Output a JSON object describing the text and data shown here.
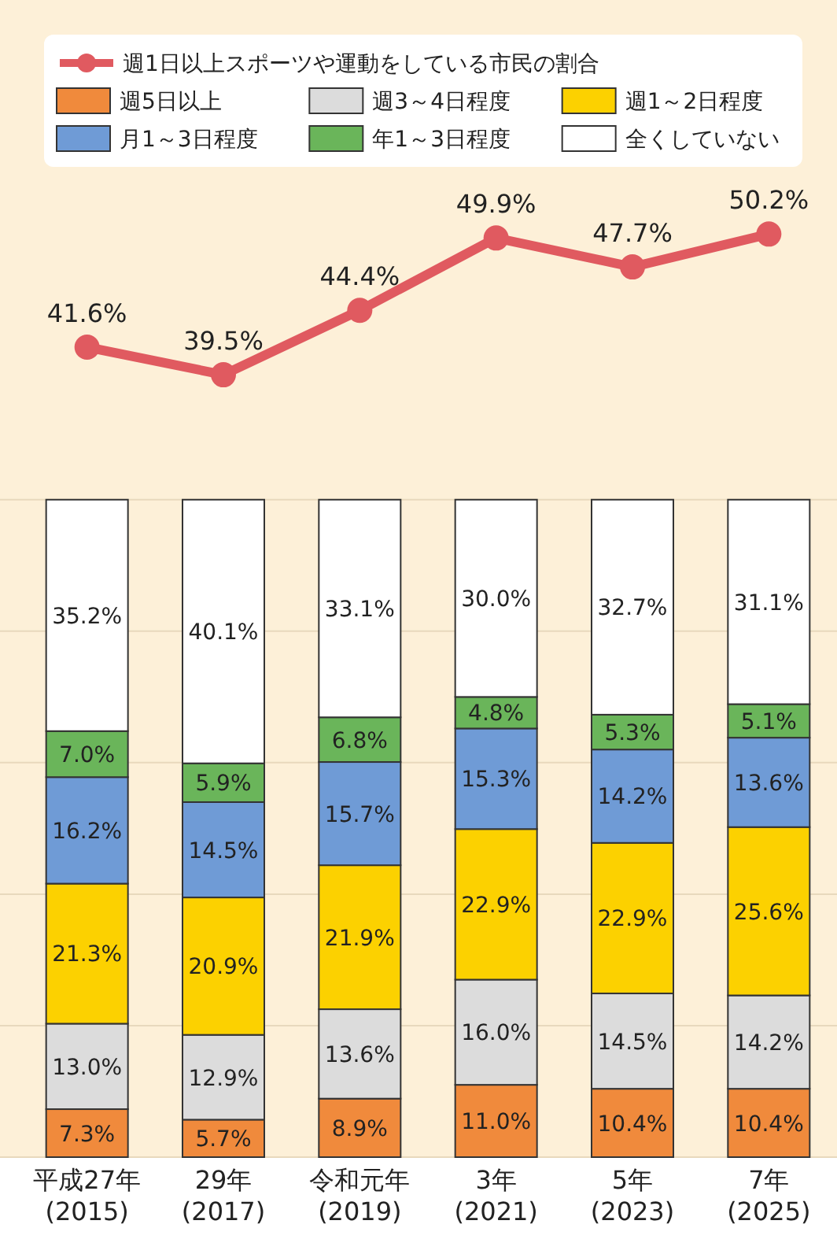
{
  "chart_data": {
    "type": "bar",
    "stacked": true,
    "categories": [
      "平成27年\n(2015)",
      "29年\n(2017)",
      "令和元年\n(2019)",
      "3年\n(2021)",
      "5年\n(2023)",
      "7年\n(2025)"
    ],
    "series": [
      {
        "name": "週5日以上",
        "color": "#f08a3c",
        "values": [
          7.3,
          5.7,
          8.9,
          11.0,
          10.4,
          10.4
        ],
        "value_labels": [
          "7.3%",
          "5.7%",
          "8.9%",
          "11.0%",
          "10.4%",
          "10.4%"
        ]
      },
      {
        "name": "週3～4日程度",
        "color": "#dcdcdc",
        "values": [
          13.0,
          12.9,
          13.6,
          16.0,
          14.5,
          14.2
        ],
        "value_labels": [
          "13.0%",
          "12.9%",
          "13.6%",
          "16.0%",
          "14.5%",
          "14.2%"
        ]
      },
      {
        "name": "週1～2日程度",
        "color": "#fcd100",
        "values": [
          21.3,
          20.9,
          21.9,
          22.9,
          22.9,
          25.6
        ],
        "value_labels": [
          "21.3%",
          "20.9%",
          "21.9%",
          "22.9%",
          "22.9%",
          "25.6%"
        ]
      },
      {
        "name": "月1～3日程度",
        "color": "#6f9bd6",
        "values": [
          16.2,
          14.5,
          15.7,
          15.3,
          14.2,
          13.6
        ],
        "value_labels": [
          "16.2%",
          "14.5%",
          "15.7%",
          "15.3%",
          "14.2%",
          "13.6%"
        ]
      },
      {
        "name": "年1～3日程度",
        "color": "#6ab55a",
        "values": [
          7.0,
          5.9,
          6.8,
          4.8,
          5.3,
          5.1
        ],
        "value_labels": [
          "7.0%",
          "5.9%",
          "6.8%",
          "4.8%",
          "5.3%",
          "5.1%"
        ]
      },
      {
        "name": "全くしていない",
        "color": "#ffffff",
        "values": [
          35.2,
          40.1,
          33.1,
          30.0,
          32.7,
          31.1
        ],
        "value_labels": [
          "35.2%",
          "40.1%",
          "33.1%",
          "30.0%",
          "32.7%",
          "31.1%"
        ]
      },
      {
        "name": "週1日以上スポーツや運動をしている市民の割合",
        "type": "line",
        "axis": "y2",
        "color": "#e05a60",
        "marker": "circle",
        "values": [
          41.6,
          39.5,
          44.4,
          49.9,
          47.7,
          50.2
        ],
        "value_labels": [
          "41.6%",
          "39.5%",
          "44.4%",
          "49.9%",
          "47.7%",
          "50.2%"
        ]
      }
    ],
    "ylim": [
      0,
      176
    ],
    "yticks": [
      {
        "value": 0,
        "label": null
      },
      {
        "value": 20,
        "label": null
      },
      {
        "value": 40,
        "label": null
      },
      {
        "value": 60,
        "label": null
      },
      {
        "value": 80,
        "label": null
      },
      {
        "value": 100,
        "label": null
      }
    ],
    "y2lim": [
      -20,
      68
    ],
    "grid": "y",
    "tick_labels": "x",
    "legend": "top"
  }
}
